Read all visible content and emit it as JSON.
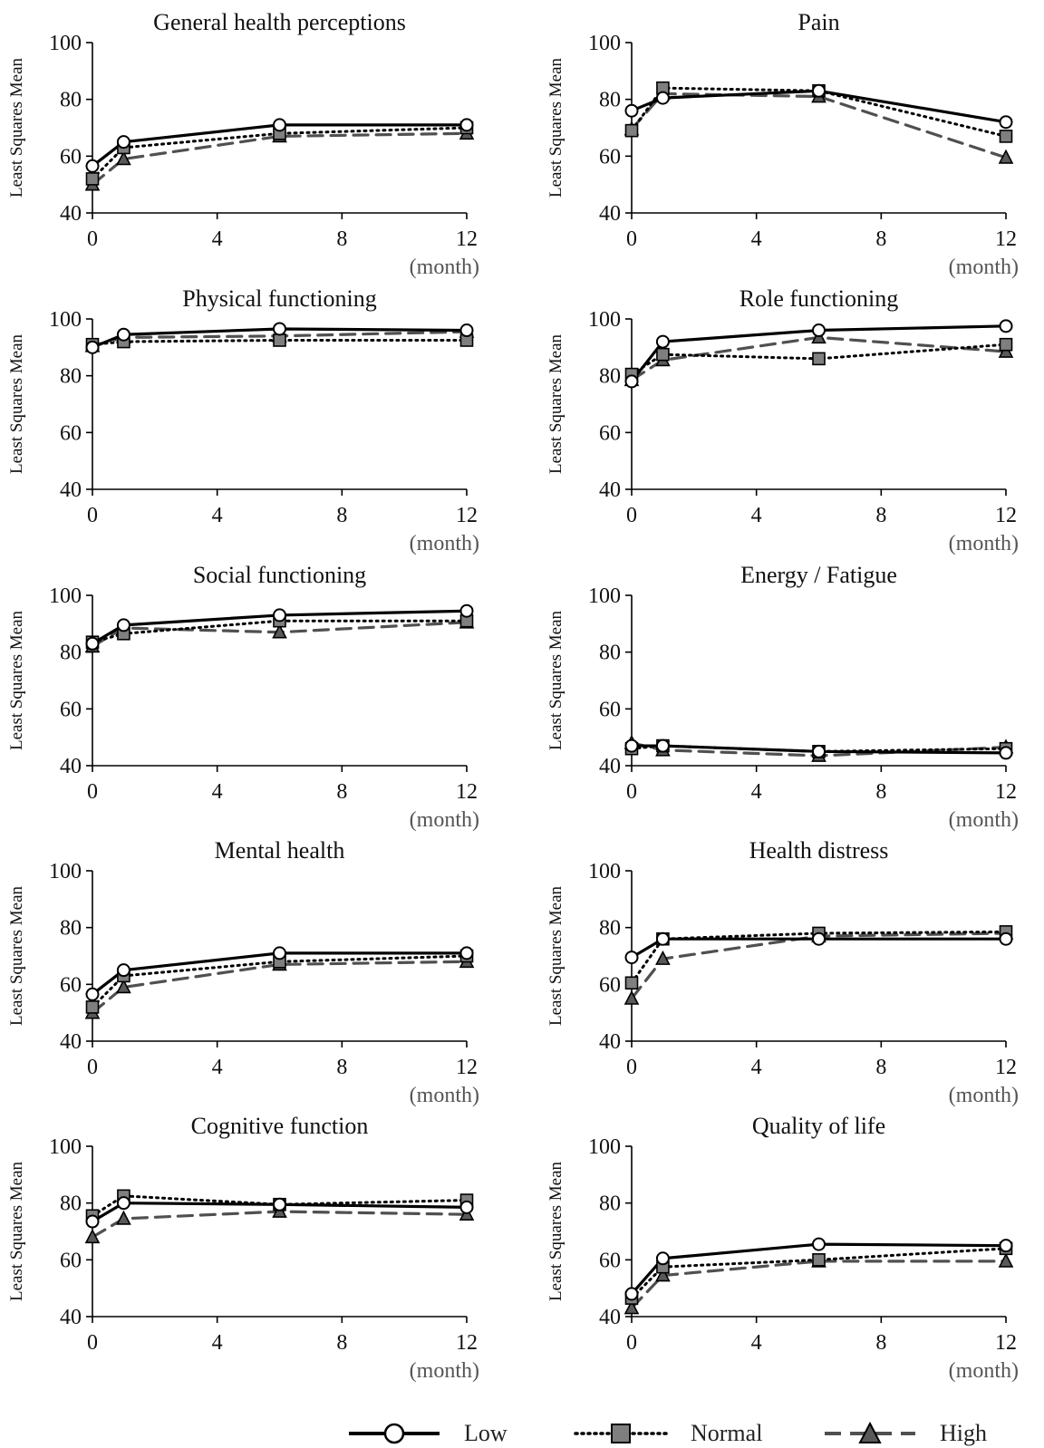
{
  "chart_data": [
    {
      "type": "line",
      "title": "General health perceptions",
      "ylabel": "Least Squares Mean",
      "xlabel": "(month)",
      "x": [
        0,
        1,
        6,
        12
      ],
      "xticks": [
        "0",
        "4",
        "8",
        "12"
      ],
      "yticks": [
        "40",
        "60",
        "80",
        "100"
      ],
      "ylim": [
        40,
        100
      ],
      "xlim": [
        0,
        12
      ],
      "series": [
        {
          "name": "Low",
          "values": [
            56.5,
            65,
            71,
            71
          ]
        },
        {
          "name": "Normal",
          "values": [
            52,
            63,
            68,
            70
          ]
        },
        {
          "name": "High",
          "values": [
            50,
            59,
            67,
            68
          ]
        }
      ]
    },
    {
      "type": "line",
      "title": "Pain",
      "ylabel": "Least Squares Mean",
      "xlabel": "(month)",
      "x": [
        0,
        1,
        6,
        12
      ],
      "xticks": [
        "0",
        "4",
        "8",
        "12"
      ],
      "yticks": [
        "40",
        "60",
        "80",
        "100"
      ],
      "ylim": [
        40,
        100
      ],
      "xlim": [
        0,
        12
      ],
      "series": [
        {
          "name": "Low",
          "values": [
            76,
            80.5,
            83,
            72
          ]
        },
        {
          "name": "Normal",
          "values": [
            69,
            84,
            83,
            67
          ]
        },
        {
          "name": "High",
          "values": [
            69.5,
            82,
            81,
            59.5
          ]
        }
      ]
    },
    {
      "type": "line",
      "title": "Physical functioning",
      "ylabel": "Least Squares Mean",
      "xlabel": "(month)",
      "x": [
        0,
        1,
        6,
        12
      ],
      "xticks": [
        "0",
        "4",
        "8",
        "12"
      ],
      "yticks": [
        "40",
        "60",
        "80",
        "100"
      ],
      "ylim": [
        40,
        100
      ],
      "xlim": [
        0,
        12
      ],
      "series": [
        {
          "name": "Low",
          "values": [
            90,
            94.5,
            96.5,
            96
          ]
        },
        {
          "name": "Normal",
          "values": [
            91,
            92,
            92.5,
            92.5
          ]
        },
        {
          "name": "High",
          "values": [
            90.5,
            93.5,
            94,
            95.5
          ]
        }
      ]
    },
    {
      "type": "line",
      "title": "Role functioning",
      "ylabel": "Least Squares Mean",
      "xlabel": "(month)",
      "x": [
        0,
        1,
        6,
        12
      ],
      "xticks": [
        "0",
        "4",
        "8",
        "12"
      ],
      "yticks": [
        "40",
        "60",
        "80",
        "100"
      ],
      "ylim": [
        40,
        100
      ],
      "xlim": [
        0,
        12
      ],
      "series": [
        {
          "name": "Low",
          "values": [
            78,
            92,
            96,
            97.5
          ]
        },
        {
          "name": "Normal",
          "values": [
            80.5,
            87.5,
            86,
            91
          ]
        },
        {
          "name": "High",
          "values": [
            78.5,
            85.5,
            93.5,
            88.5
          ]
        }
      ]
    },
    {
      "type": "line",
      "title": "Social functioning",
      "ylabel": "Least Squares Mean",
      "xlabel": "(month)",
      "x": [
        0,
        1,
        6,
        12
      ],
      "xticks": [
        "0",
        "4",
        "8",
        "12"
      ],
      "yticks": [
        "40",
        "60",
        "80",
        "100"
      ],
      "ylim": [
        40,
        100
      ],
      "xlim": [
        0,
        12
      ],
      "series": [
        {
          "name": "Low",
          "values": [
            83,
            89.5,
            93,
            94.5
          ]
        },
        {
          "name": "Normal",
          "values": [
            83.5,
            86.5,
            91,
            91
          ]
        },
        {
          "name": "High",
          "values": [
            82,
            88.5,
            87,
            90.5
          ]
        }
      ]
    },
    {
      "type": "line",
      "title": "Energy / Fatigue",
      "ylabel": "Least Squares Mean",
      "xlabel": "(month)",
      "x": [
        0,
        1,
        6,
        12
      ],
      "xticks": [
        "0",
        "4",
        "8",
        "12"
      ],
      "yticks": [
        "40",
        "60",
        "80",
        "100"
      ],
      "ylim": [
        40,
        100
      ],
      "xlim": [
        0,
        12
      ],
      "series": [
        {
          "name": "Low",
          "values": [
            47,
            47,
            45,
            44.5
          ]
        },
        {
          "name": "Normal",
          "values": [
            46,
            47,
            45,
            46
          ]
        },
        {
          "name": "High",
          "values": [
            48,
            45.5,
            43.5,
            46.5
          ]
        }
      ]
    },
    {
      "type": "line",
      "title": "Mental health",
      "ylabel": "Least Squares Mean",
      "xlabel": "(month)",
      "x": [
        0,
        1,
        6,
        12
      ],
      "xticks": [
        "0",
        "4",
        "8",
        "12"
      ],
      "yticks": [
        "40",
        "60",
        "80",
        "100"
      ],
      "ylim": [
        40,
        100
      ],
      "xlim": [
        0,
        12
      ],
      "series": [
        {
          "name": "Low",
          "values": [
            56.5,
            65,
            71,
            71
          ]
        },
        {
          "name": "Normal",
          "values": [
            52,
            63,
            68,
            70
          ]
        },
        {
          "name": "High",
          "values": [
            50,
            59,
            67,
            68
          ]
        }
      ]
    },
    {
      "type": "line",
      "title": "Health distress",
      "ylabel": "Least Squares Mean",
      "xlabel": "(month)",
      "x": [
        0,
        1,
        6,
        12
      ],
      "xticks": [
        "0",
        "4",
        "8",
        "12"
      ],
      "yticks": [
        "40",
        "60",
        "80",
        "100"
      ],
      "ylim": [
        40,
        100
      ],
      "xlim": [
        0,
        12
      ],
      "series": [
        {
          "name": "Low",
          "values": [
            69.5,
            76,
            76,
            76
          ]
        },
        {
          "name": "Normal",
          "values": [
            60.5,
            76,
            78,
            78.5
          ]
        },
        {
          "name": "High",
          "values": [
            55,
            69,
            77,
            78
          ]
        }
      ]
    },
    {
      "type": "line",
      "title": "Cognitive function",
      "ylabel": "Least Squares Mean",
      "xlabel": "(month)",
      "x": [
        0,
        1,
        6,
        12
      ],
      "xticks": [
        "0",
        "4",
        "8",
        "12"
      ],
      "yticks": [
        "40",
        "60",
        "80",
        "100"
      ],
      "ylim": [
        40,
        100
      ],
      "xlim": [
        0,
        12
      ],
      "series": [
        {
          "name": "Low",
          "values": [
            73.5,
            80,
            79.5,
            78.5
          ]
        },
        {
          "name": "Normal",
          "values": [
            75.5,
            82.5,
            79.5,
            81
          ]
        },
        {
          "name": "High",
          "values": [
            68,
            74.5,
            77,
            76
          ]
        }
      ]
    },
    {
      "type": "line",
      "title": "Quality of life",
      "ylabel": "Least Squares Mean",
      "xlabel": "(month)",
      "x": [
        0,
        1,
        6,
        12
      ],
      "xticks": [
        "0",
        "4",
        "8",
        "12"
      ],
      "yticks": [
        "40",
        "60",
        "80",
        "100"
      ],
      "ylim": [
        40,
        100
      ],
      "xlim": [
        0,
        12
      ],
      "series": [
        {
          "name": "Low",
          "values": [
            48,
            60.5,
            65.5,
            65
          ]
        },
        {
          "name": "Normal",
          "values": [
            46.5,
            57.5,
            60,
            64
          ]
        },
        {
          "name": "High",
          "values": [
            43,
            54.5,
            59.5,
            59.5
          ]
        }
      ]
    }
  ],
  "legend": {
    "items": [
      {
        "label": "Low",
        "marker": "circle",
        "line": "solid",
        "color": "#000000",
        "fill": "#ffffff"
      },
      {
        "label": "Normal",
        "marker": "square",
        "line": "dotted",
        "color": "#000000",
        "fill": "#7f7f7f"
      },
      {
        "label": "High",
        "marker": "triangle",
        "line": "dashed",
        "color": "#505050",
        "fill": "#595959"
      }
    ]
  }
}
